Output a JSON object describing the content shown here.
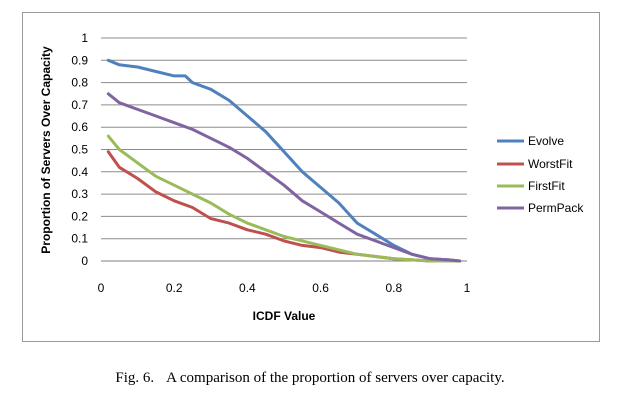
{
  "chart_data": {
    "type": "line",
    "xlabel": "ICDF Value",
    "ylabel": "Proportion of Servers Over Capacity",
    "xlim": [
      0,
      1
    ],
    "ylim": [
      0,
      1
    ],
    "x_ticks": [
      "0",
      "0.2",
      "0.4",
      "0.6",
      "0.8",
      "1"
    ],
    "y_ticks": [
      "0",
      "0.1",
      "0.2",
      "0.3",
      "0.4",
      "0.5",
      "0.6",
      "0.7",
      "0.8",
      "0.9",
      "1"
    ],
    "grid": "horizontal",
    "legend_position": "right",
    "series": [
      {
        "name": "Evolve",
        "color": "#4f81bd",
        "x": [
          0.02,
          0.05,
          0.1,
          0.15,
          0.2,
          0.23,
          0.25,
          0.3,
          0.35,
          0.4,
          0.45,
          0.5,
          0.55,
          0.6,
          0.65,
          0.7,
          0.75,
          0.8,
          0.85,
          0.9,
          0.95,
          0.98
        ],
        "y": [
          0.9,
          0.88,
          0.87,
          0.85,
          0.83,
          0.83,
          0.8,
          0.77,
          0.72,
          0.65,
          0.58,
          0.49,
          0.4,
          0.33,
          0.26,
          0.17,
          0.12,
          0.07,
          0.03,
          0.01,
          0.005,
          0.0
        ]
      },
      {
        "name": "WorstFit",
        "color": "#c0504d",
        "x": [
          0.02,
          0.05,
          0.1,
          0.15,
          0.2,
          0.25,
          0.3,
          0.35,
          0.4,
          0.45,
          0.5,
          0.55,
          0.6,
          0.65,
          0.7,
          0.75,
          0.8,
          0.85,
          0.9,
          0.95,
          0.98
        ],
        "y": [
          0.49,
          0.42,
          0.37,
          0.31,
          0.27,
          0.24,
          0.19,
          0.17,
          0.14,
          0.12,
          0.09,
          0.07,
          0.06,
          0.04,
          0.03,
          0.02,
          0.01,
          0.005,
          0.0,
          0.0,
          0.0
        ]
      },
      {
        "name": "FirstFit",
        "color": "#9bbb59",
        "x": [
          0.02,
          0.05,
          0.1,
          0.15,
          0.2,
          0.25,
          0.3,
          0.35,
          0.4,
          0.45,
          0.5,
          0.55,
          0.6,
          0.65,
          0.7,
          0.75,
          0.8,
          0.85,
          0.9,
          0.95,
          0.98
        ],
        "y": [
          0.56,
          0.5,
          0.44,
          0.38,
          0.34,
          0.3,
          0.26,
          0.21,
          0.17,
          0.14,
          0.11,
          0.09,
          0.07,
          0.05,
          0.03,
          0.02,
          0.01,
          0.005,
          0.0,
          0.0,
          0.0
        ]
      },
      {
        "name": "PermPack",
        "color": "#8064a2",
        "x": [
          0.02,
          0.05,
          0.1,
          0.15,
          0.2,
          0.25,
          0.3,
          0.35,
          0.4,
          0.45,
          0.5,
          0.55,
          0.6,
          0.65,
          0.7,
          0.75,
          0.8,
          0.85,
          0.9,
          0.95,
          0.98
        ],
        "y": [
          0.75,
          0.71,
          0.68,
          0.65,
          0.62,
          0.59,
          0.55,
          0.51,
          0.46,
          0.4,
          0.34,
          0.27,
          0.22,
          0.17,
          0.12,
          0.09,
          0.06,
          0.03,
          0.01,
          0.005,
          0.0
        ]
      }
    ]
  },
  "caption": {
    "fig_label": "Fig. 6.",
    "text": "A comparison of the proportion of servers over capacity."
  }
}
